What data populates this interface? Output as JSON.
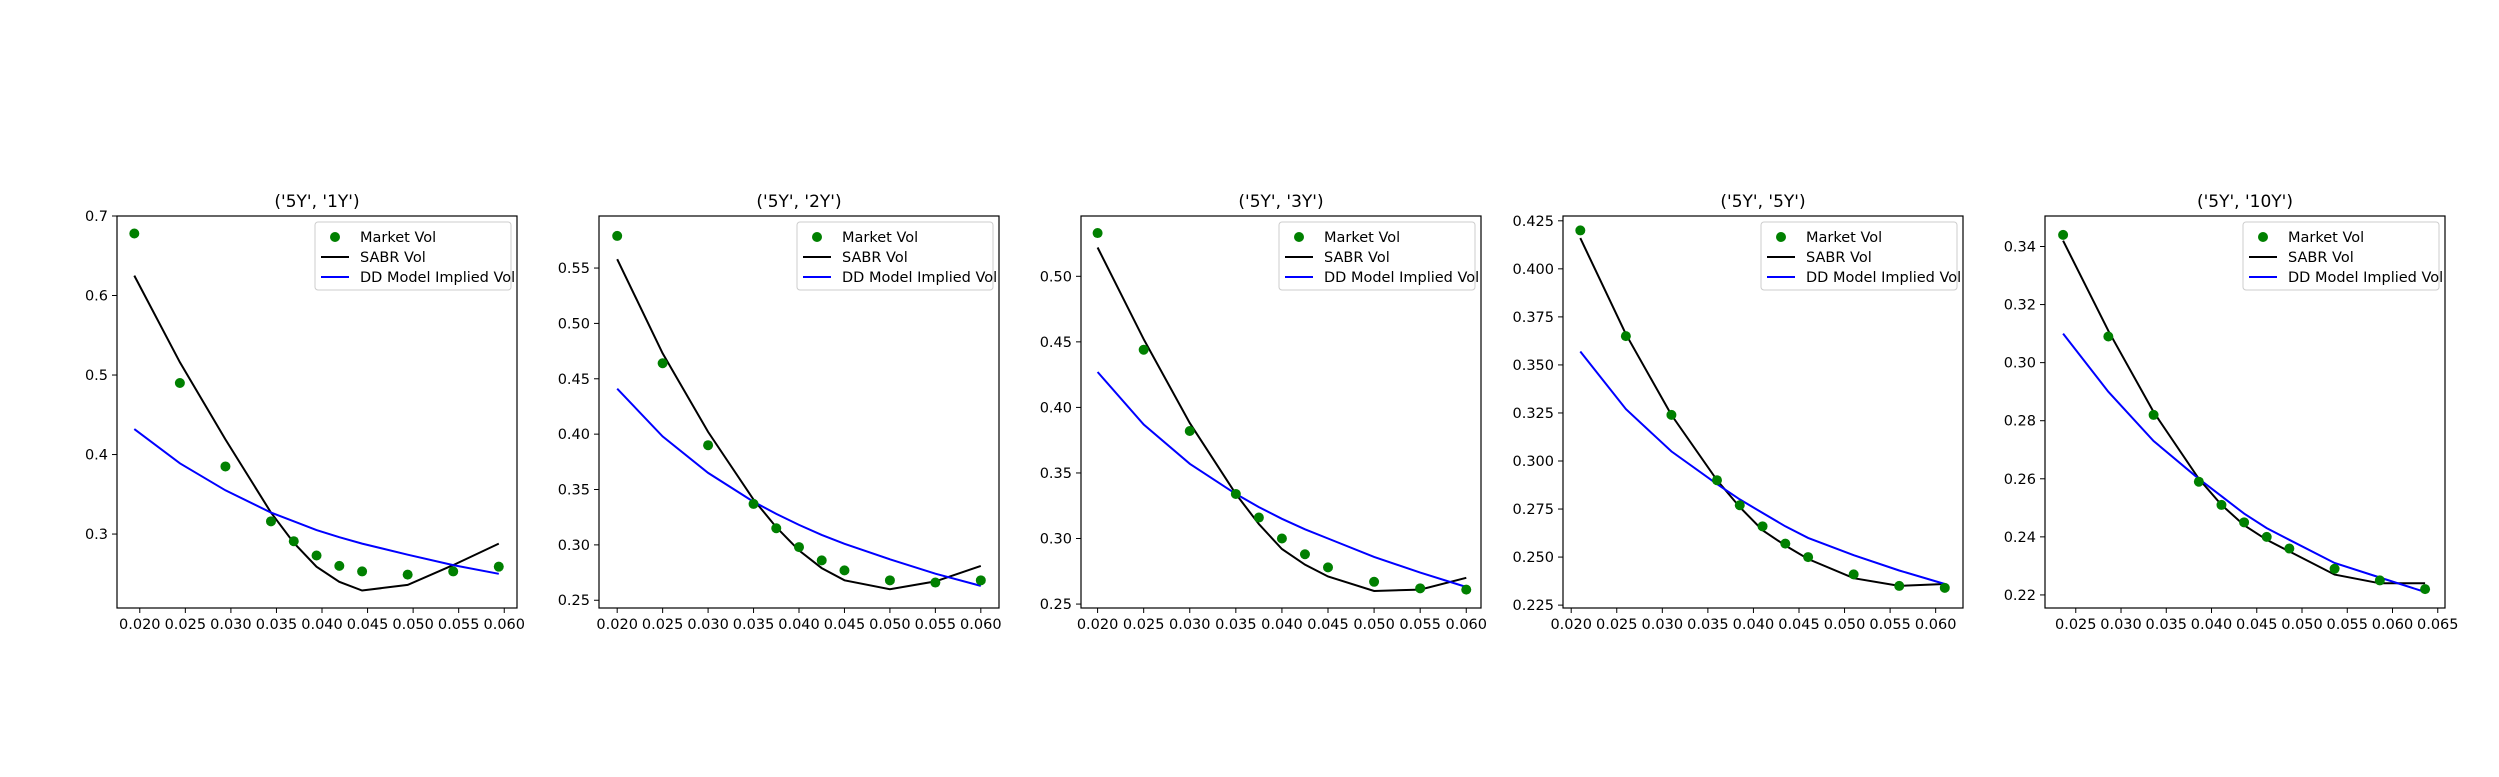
{
  "legend": {
    "market": "Market Vol",
    "sabr": "SABR Vol",
    "dd": "DD Model Implied Vol",
    "placement": "upper right"
  },
  "colors": {
    "market": "#008000",
    "sabr": "#000000",
    "dd": "#0000ff",
    "frame": "#000000",
    "background": "#ffffff"
  },
  "chart_data": [
    {
      "type": "line",
      "title": "('5Y', '1Y')",
      "xlim": [
        0.0175,
        0.0614
      ],
      "ylim": [
        0.207,
        0.7
      ],
      "xticks": [
        0.02,
        0.025,
        0.03,
        0.035,
        0.04,
        0.045,
        0.05,
        0.055,
        0.06
      ],
      "xtick_labels": [
        "0.020",
        "0.025",
        "0.030",
        "0.035",
        "0.040",
        "0.045",
        "0.050",
        "0.055",
        "0.060"
      ],
      "yticks": [
        0.3,
        0.4,
        0.5,
        0.6,
        0.7
      ],
      "ytick_labels": [
        "0.3",
        "0.4",
        "0.5",
        "0.6",
        "0.7"
      ],
      "grid": false,
      "series": [
        {
          "name": "Market Vol",
          "kind": "scatter",
          "x": [
            0.0194,
            0.0244,
            0.0294,
            0.0344,
            0.0369,
            0.0394,
            0.0419,
            0.0444,
            0.0494,
            0.0544,
            0.0594
          ],
          "y": [
            0.678,
            0.49,
            0.385,
            0.316,
            0.291,
            0.273,
            0.26,
            0.253,
            0.249,
            0.253,
            0.259
          ]
        },
        {
          "name": "SABR Vol",
          "kind": "line",
          "x": [
            0.0194,
            0.0244,
            0.0294,
            0.0344,
            0.0369,
            0.0394,
            0.0419,
            0.0444,
            0.0494,
            0.0544,
            0.0594
          ],
          "y": [
            0.625,
            0.516,
            0.419,
            0.327,
            0.289,
            0.259,
            0.24,
            0.229,
            0.236,
            0.261,
            0.288
          ]
        },
        {
          "name": "DD Model Implied Vol",
          "kind": "line",
          "x": [
            0.0194,
            0.0244,
            0.0294,
            0.0344,
            0.0369,
            0.0394,
            0.0419,
            0.0444,
            0.0494,
            0.0544,
            0.0594
          ],
          "y": [
            0.432,
            0.389,
            0.355,
            0.327,
            0.316,
            0.305,
            0.296,
            0.288,
            0.274,
            0.261,
            0.25
          ]
        }
      ]
    },
    {
      "type": "line",
      "title": "('5Y', '2Y')",
      "xlim": [
        0.018,
        0.062
      ],
      "ylim": [
        0.243,
        0.597
      ],
      "xticks": [
        0.02,
        0.025,
        0.03,
        0.035,
        0.04,
        0.045,
        0.05,
        0.055,
        0.06
      ],
      "xtick_labels": [
        "0.020",
        "0.025",
        "0.030",
        "0.035",
        "0.040",
        "0.045",
        "0.050",
        "0.055",
        "0.060"
      ],
      "yticks": [
        0.25,
        0.3,
        0.35,
        0.4,
        0.45,
        0.5,
        0.55
      ],
      "ytick_labels": [
        "0.25",
        "0.30",
        "0.35",
        "0.40",
        "0.45",
        "0.50",
        "0.55"
      ],
      "grid": false,
      "series": [
        {
          "name": "Market Vol",
          "kind": "scatter",
          "x": [
            0.02,
            0.025,
            0.03,
            0.035,
            0.0375,
            0.04,
            0.0425,
            0.045,
            0.05,
            0.055,
            0.06
          ],
          "y": [
            0.579,
            0.464,
            0.39,
            0.337,
            0.315,
            0.298,
            0.286,
            0.277,
            0.268,
            0.266,
            0.268
          ]
        },
        {
          "name": "SABR Vol",
          "kind": "line",
          "x": [
            0.02,
            0.025,
            0.03,
            0.035,
            0.0375,
            0.04,
            0.0425,
            0.045,
            0.05,
            0.055,
            0.06
          ],
          "y": [
            0.558,
            0.473,
            0.402,
            0.341,
            0.316,
            0.295,
            0.279,
            0.268,
            0.26,
            0.267,
            0.281
          ]
        },
        {
          "name": "DD Model Implied Vol",
          "kind": "line",
          "x": [
            0.02,
            0.025,
            0.03,
            0.035,
            0.0375,
            0.04,
            0.0425,
            0.045,
            0.05,
            0.055,
            0.06
          ],
          "y": [
            0.441,
            0.398,
            0.365,
            0.339,
            0.328,
            0.318,
            0.309,
            0.301,
            0.287,
            0.274,
            0.263
          ]
        }
      ]
    },
    {
      "type": "line",
      "title": "('5Y', '3Y')",
      "xlim": [
        0.0182,
        0.0616
      ],
      "ylim": [
        0.247,
        0.546
      ],
      "xticks": [
        0.02,
        0.025,
        0.03,
        0.035,
        0.04,
        0.045,
        0.05,
        0.055,
        0.06
      ],
      "xtick_labels": [
        "0.020",
        "0.025",
        "0.030",
        "0.035",
        "0.040",
        "0.045",
        "0.050",
        "0.055",
        "0.060"
      ],
      "yticks": [
        0.25,
        0.3,
        0.35,
        0.4,
        0.45,
        0.5
      ],
      "ytick_labels": [
        "0.25",
        "0.30",
        "0.35",
        "0.40",
        "0.45",
        "0.50"
      ],
      "grid": false,
      "series": [
        {
          "name": "Market Vol",
          "kind": "scatter",
          "x": [
            0.02,
            0.025,
            0.03,
            0.035,
            0.0375,
            0.04,
            0.0425,
            0.045,
            0.05,
            0.055,
            0.06
          ],
          "y": [
            0.533,
            0.444,
            0.382,
            0.334,
            0.316,
            0.3,
            0.288,
            0.278,
            0.267,
            0.262,
            0.261
          ]
        },
        {
          "name": "SABR Vol",
          "kind": "line",
          "x": [
            0.02,
            0.025,
            0.03,
            0.035,
            0.0375,
            0.04,
            0.0425,
            0.045,
            0.05,
            0.055,
            0.06
          ],
          "y": [
            0.522,
            0.452,
            0.388,
            0.334,
            0.311,
            0.292,
            0.28,
            0.271,
            0.26,
            0.261,
            0.27
          ]
        },
        {
          "name": "DD Model Implied Vol",
          "kind": "line",
          "x": [
            0.02,
            0.025,
            0.03,
            0.035,
            0.0375,
            0.04,
            0.0425,
            0.045,
            0.05,
            0.055,
            0.06
          ],
          "y": [
            0.427,
            0.387,
            0.357,
            0.334,
            0.324,
            0.315,
            0.307,
            0.3,
            0.286,
            0.274,
            0.263
          ]
        }
      ]
    },
    {
      "type": "line",
      "title": "('5Y', '5Y')",
      "xlim": [
        0.0191,
        0.063
      ],
      "ylim": [
        0.2235,
        0.4275
      ],
      "xticks": [
        0.02,
        0.025,
        0.03,
        0.035,
        0.04,
        0.045,
        0.05,
        0.055,
        0.06
      ],
      "xtick_labels": [
        "0.020",
        "0.025",
        "0.030",
        "0.035",
        "0.040",
        "0.045",
        "0.050",
        "0.055",
        "0.060"
      ],
      "yticks": [
        0.225,
        0.25,
        0.275,
        0.3,
        0.325,
        0.35,
        0.375,
        0.4,
        0.425
      ],
      "ytick_labels": [
        "0.225",
        "0.250",
        "0.275",
        "0.300",
        "0.325",
        "0.350",
        "0.375",
        "0.400",
        "0.425"
      ],
      "grid": false,
      "series": [
        {
          "name": "Market Vol",
          "kind": "scatter",
          "x": [
            0.021,
            0.026,
            0.031,
            0.036,
            0.0385,
            0.041,
            0.0435,
            0.046,
            0.051,
            0.056,
            0.061
          ],
          "y": [
            0.42,
            0.365,
            0.324,
            0.29,
            0.277,
            0.266,
            0.257,
            0.25,
            0.241,
            0.235,
            0.234
          ]
        },
        {
          "name": "SABR Vol",
          "kind": "line",
          "x": [
            0.021,
            0.026,
            0.031,
            0.036,
            0.0385,
            0.041,
            0.0435,
            0.046,
            0.051,
            0.056,
            0.061
          ],
          "y": [
            0.416,
            0.366,
            0.324,
            0.29,
            0.276,
            0.264,
            0.256,
            0.249,
            0.239,
            0.235,
            0.236
          ]
        },
        {
          "name": "DD Model Implied Vol",
          "kind": "line",
          "x": [
            0.021,
            0.026,
            0.031,
            0.036,
            0.0385,
            0.041,
            0.0435,
            0.046,
            0.051,
            0.056,
            0.061
          ],
          "y": [
            0.357,
            0.327,
            0.305,
            0.288,
            0.28,
            0.273,
            0.266,
            0.26,
            0.251,
            0.243,
            0.236
          ]
        }
      ]
    },
    {
      "type": "line",
      "title": "('5Y', '10Y')",
      "xlim": [
        0.0216,
        0.0658
      ],
      "ylim": [
        0.2155,
        0.3505
      ],
      "xticks": [
        0.025,
        0.03,
        0.035,
        0.04,
        0.045,
        0.05,
        0.055,
        0.06,
        0.065
      ],
      "xtick_labels": [
        "0.025",
        "0.030",
        "0.035",
        "0.040",
        "0.045",
        "0.050",
        "0.055",
        "0.060",
        "0.065"
      ],
      "yticks": [
        0.22,
        0.24,
        0.26,
        0.28,
        0.3,
        0.32,
        0.34
      ],
      "ytick_labels": [
        "0.22",
        "0.24",
        "0.26",
        "0.28",
        "0.30",
        "0.32",
        "0.34"
      ],
      "grid": false,
      "series": [
        {
          "name": "Market Vol",
          "kind": "scatter",
          "x": [
            0.0236,
            0.0286,
            0.0336,
            0.0386,
            0.0411,
            0.0436,
            0.0461,
            0.0486,
            0.0536,
            0.0586,
            0.0636
          ],
          "y": [
            0.344,
            0.309,
            0.282,
            0.259,
            0.251,
            0.245,
            0.24,
            0.236,
            0.229,
            0.225,
            0.222
          ]
        },
        {
          "name": "SABR Vol",
          "kind": "line",
          "x": [
            0.0236,
            0.0286,
            0.0336,
            0.0386,
            0.0411,
            0.0436,
            0.0461,
            0.0486,
            0.0536,
            0.0586,
            0.0636
          ],
          "y": [
            0.342,
            0.311,
            0.283,
            0.26,
            0.251,
            0.244,
            0.239,
            0.235,
            0.227,
            0.224,
            0.224
          ]
        },
        {
          "name": "DD Model Implied Vol",
          "kind": "line",
          "x": [
            0.0236,
            0.0286,
            0.0336,
            0.0386,
            0.0411,
            0.0436,
            0.0461,
            0.0486,
            0.0536,
            0.0586,
            0.0636
          ],
          "y": [
            0.31,
            0.29,
            0.273,
            0.26,
            0.254,
            0.248,
            0.243,
            0.239,
            0.231,
            0.226,
            0.221
          ]
        }
      ]
    }
  ]
}
